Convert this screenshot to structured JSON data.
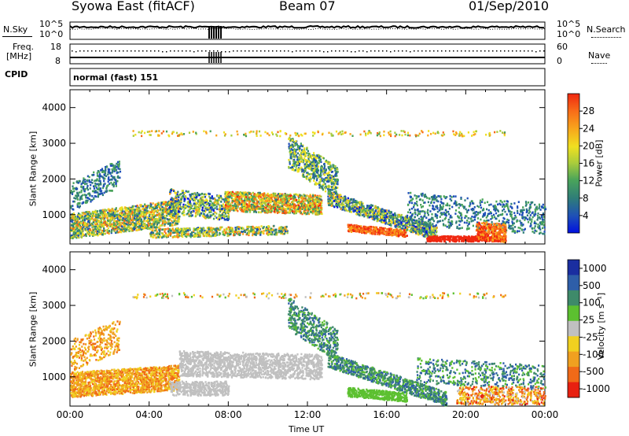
{
  "header": {
    "station": "Syowa East (fitACF)",
    "beam": "Beam 07",
    "date": "01/Sep/2010"
  },
  "top_panels": {
    "nsky_label": "N.Sky",
    "nsky_ticks": [
      "10^5",
      "10^0"
    ],
    "nsearch_label": "N.Search",
    "nsearch_ticks": [
      "10^5",
      "10^0"
    ],
    "freq_label_1": "Freq.",
    "freq_label_2": "[MHz]",
    "freq_ticks": [
      "18",
      "8"
    ],
    "nave_label": "Nave",
    "nave_ticks": [
      "60",
      "0"
    ],
    "cpid_label": "CPID",
    "cpid_value": "normal (fast) 151"
  },
  "chart_data": [
    {
      "type": "heatmap",
      "title": "Power",
      "ylabel": "Slant Range [km]",
      "xlabel": "Time UT",
      "ylim": [
        180,
        4500
      ],
      "yticks": [
        "1000",
        "2000",
        "3000",
        "4000"
      ],
      "xticks": [
        "00:00",
        "04:00",
        "08:00",
        "12:00",
        "16:00",
        "20:00",
        "00:00"
      ],
      "colorbar_label": "Power [dB]",
      "colorbar_ticks": [
        "4",
        "8",
        "12",
        "16",
        "20",
        "24",
        "28"
      ],
      "colorscale": [
        "#0010e0",
        "#1e4fb8",
        "#2f7d78",
        "#4aa45a",
        "#a8cc3c",
        "#f0e020",
        "#f8a51c",
        "#f86a18",
        "#f02810"
      ]
    },
    {
      "type": "heatmap",
      "title": "Velocity",
      "ylabel": "Slant Range [km]",
      "xlabel": "Time UT",
      "ylim": [
        180,
        4500
      ],
      "yticks": [
        "1000",
        "2000",
        "3000",
        "4000"
      ],
      "xticks": [
        "00:00",
        "04:00",
        "08:00",
        "12:00",
        "16:00",
        "20:00",
        "00:00"
      ],
      "colorbar_label": "Velocity [m s⁻¹]",
      "colorbar_ticks": [
        "1000",
        "500",
        "100",
        "25",
        "-25",
        "-100",
        "-500",
        "-1000"
      ],
      "colorscale": [
        "#1a2ea0",
        "#2e5ea8",
        "#3e8a6a",
        "#5cc030",
        "#c0c0c0",
        "#f0d020",
        "#f0a020",
        "#f06a18",
        "#e82010"
      ]
    }
  ],
  "x_axis": {
    "ticks": [
      "00:00",
      "04:00",
      "08:00",
      "12:00",
      "16:00",
      "20:00",
      "00:00"
    ],
    "label": "Time UT"
  }
}
